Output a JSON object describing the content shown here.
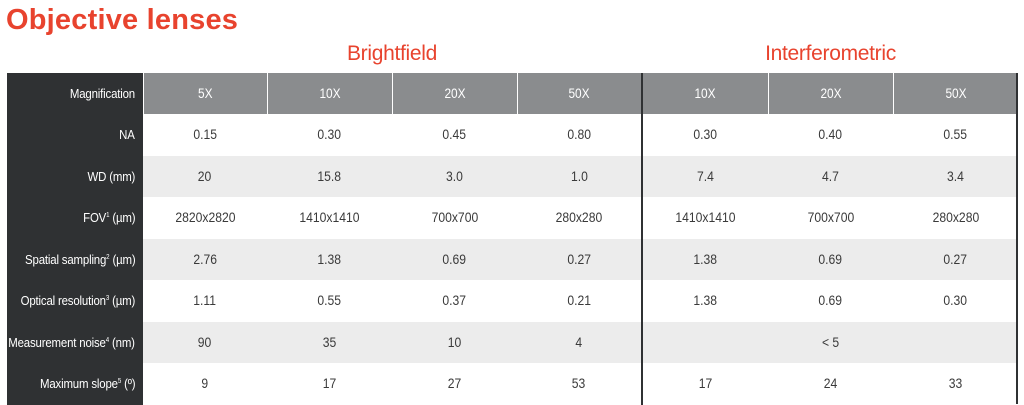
{
  "title": "Objective lenses",
  "groups": {
    "brightfield": "Brightfield",
    "interferometric": "Interferometric"
  },
  "header": {
    "label": "Magnification",
    "brightfield": [
      "5X",
      "10X",
      "20X",
      "50X"
    ],
    "interferometric": [
      "10X",
      "20X",
      "50X"
    ]
  },
  "rows": [
    {
      "label": "NA",
      "sup": "",
      "unit": "",
      "bf": [
        "0.15",
        "0.30",
        "0.45",
        "0.80"
      ],
      "if": [
        "0.30",
        "0.40",
        "0.55"
      ]
    },
    {
      "label": "WD",
      "sup": "",
      "unit": " (mm)",
      "bf": [
        "20",
        "15.8",
        "3.0",
        "1.0"
      ],
      "if": [
        "7.4",
        "4.7",
        "3.4"
      ]
    },
    {
      "label": "FOV",
      "sup": "1",
      "unit": " (µm)",
      "bf": [
        "2820x2820",
        "1410x1410",
        "700x700",
        "280x280"
      ],
      "if": [
        "1410x1410",
        "700x700",
        "280x280"
      ]
    },
    {
      "label": "Spatial sampling",
      "sup": "2",
      "unit": " (µm)",
      "bf": [
        "2.76",
        "1.38",
        "0.69",
        "0.27"
      ],
      "if": [
        "1.38",
        "0.69",
        "0.27"
      ]
    },
    {
      "label": "Optical resolution",
      "sup": "3",
      "unit": " (µm)",
      "bf": [
        "1.11",
        "0.55",
        "0.37",
        "0.21"
      ],
      "if": [
        "1.38",
        "0.69",
        "0.30"
      ]
    },
    {
      "label": "Measurement noise",
      "sup": "4",
      "unit": " (nm)",
      "bf": [
        "90",
        "35",
        "10",
        "4"
      ],
      "if_span": "< 5"
    },
    {
      "label": "Maximum slope",
      "sup": "5",
      "unit": " (º)",
      "bf": [
        "9",
        "17",
        "27",
        "53"
      ],
      "if": [
        "17",
        "24",
        "33"
      ]
    }
  ],
  "colors": {
    "accent": "#e8432e",
    "label_bg": "#2f3133",
    "header_bg": "#8a8c8e",
    "row_shade": "#ececec"
  }
}
